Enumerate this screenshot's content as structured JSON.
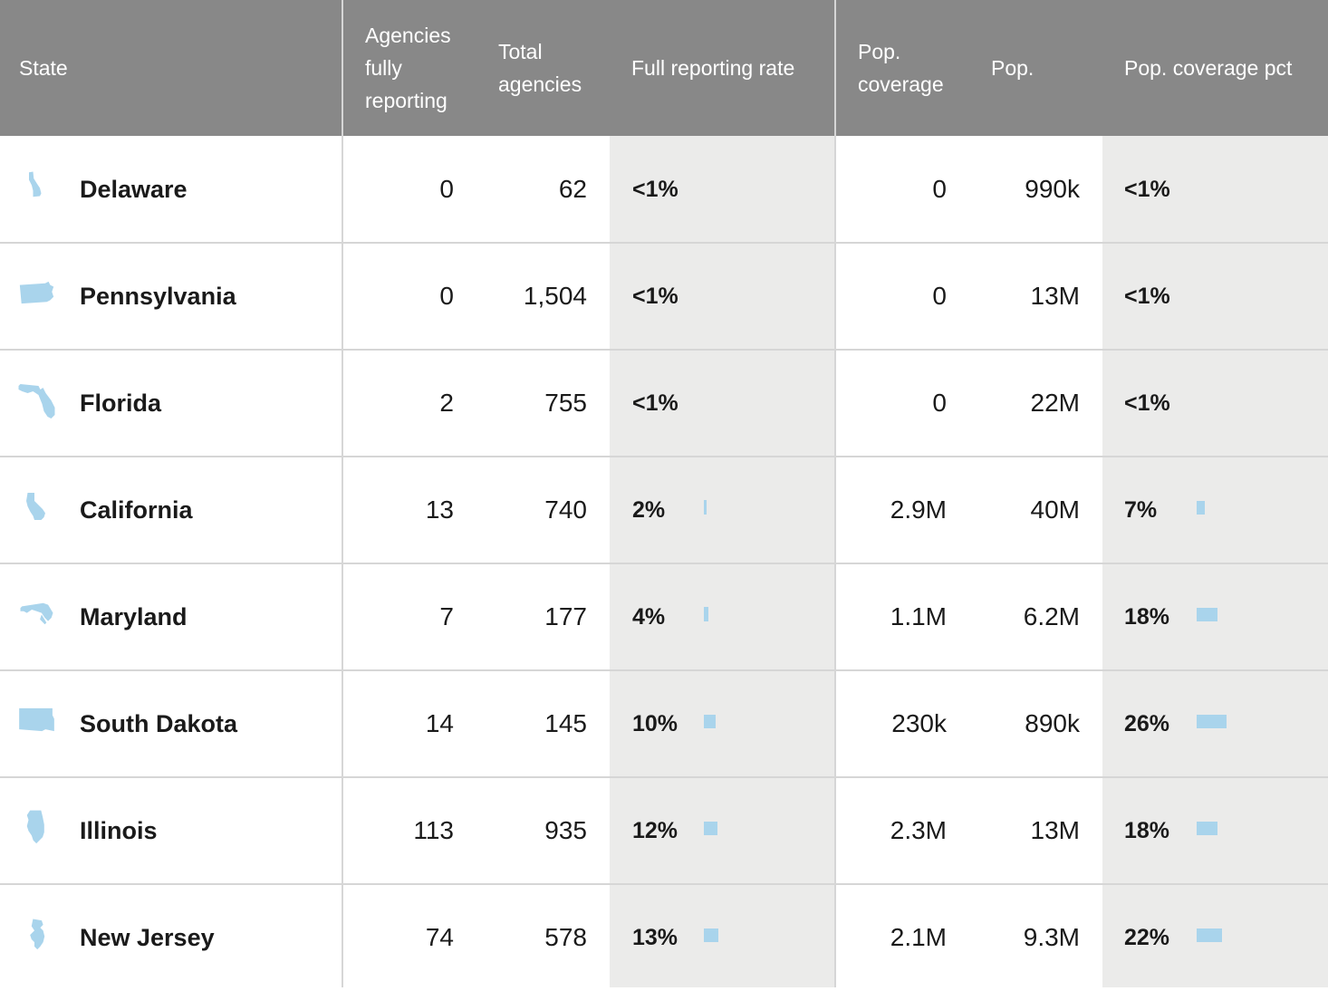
{
  "header": {
    "state": "State",
    "agencies_fully_reporting": "Agencies\nfully\nreporting",
    "total_agencies": "Total\nagencies",
    "full_reporting_rate": "Full reporting rate",
    "pop_coverage": "Pop.\ncoverage",
    "pop": "Pop.",
    "pop_coverage_pct": "Pop. coverage pct"
  },
  "colors": {
    "header_bg": "#888888",
    "shaded_column": "#ebebea",
    "bar": "#a9d4ec",
    "icon": "#a9d4ec"
  },
  "rows": [
    {
      "icon": "delaware-icon",
      "state": "Delaware",
      "agencies_fully_reporting": "0",
      "total_agencies": "62",
      "full_reporting_rate": "<1%",
      "full_reporting_rate_value": 0,
      "pop_coverage": "0",
      "pop": "990k",
      "pop_coverage_pct": "<1%",
      "pop_coverage_pct_value": 0
    },
    {
      "icon": "pennsylvania-icon",
      "state": "Pennsylvania",
      "agencies_fully_reporting": "0",
      "total_agencies": "1,504",
      "full_reporting_rate": "<1%",
      "full_reporting_rate_value": 0,
      "pop_coverage": "0",
      "pop": "13M",
      "pop_coverage_pct": "<1%",
      "pop_coverage_pct_value": 0
    },
    {
      "icon": "florida-icon",
      "state": "Florida",
      "agencies_fully_reporting": "2",
      "total_agencies": "755",
      "full_reporting_rate": "<1%",
      "full_reporting_rate_value": 0,
      "pop_coverage": "0",
      "pop": "22M",
      "pop_coverage_pct": "<1%",
      "pop_coverage_pct_value": 0
    },
    {
      "icon": "california-icon",
      "state": "California",
      "agencies_fully_reporting": "13",
      "total_agencies": "740",
      "full_reporting_rate": "2%",
      "full_reporting_rate_value": 2,
      "pop_coverage": "2.9M",
      "pop": "40M",
      "pop_coverage_pct": "7%",
      "pop_coverage_pct_value": 7
    },
    {
      "icon": "maryland-icon",
      "state": "Maryland",
      "agencies_fully_reporting": "7",
      "total_agencies": "177",
      "full_reporting_rate": "4%",
      "full_reporting_rate_value": 4,
      "pop_coverage": "1.1M",
      "pop": "6.2M",
      "pop_coverage_pct": "18%",
      "pop_coverage_pct_value": 18
    },
    {
      "icon": "south-dakota-icon",
      "state": "South Dakota",
      "agencies_fully_reporting": "14",
      "total_agencies": "145",
      "full_reporting_rate": "10%",
      "full_reporting_rate_value": 10,
      "pop_coverage": "230k",
      "pop": "890k",
      "pop_coverage_pct": "26%",
      "pop_coverage_pct_value": 26
    },
    {
      "icon": "illinois-icon",
      "state": "Illinois",
      "agencies_fully_reporting": "113",
      "total_agencies": "935",
      "full_reporting_rate": "12%",
      "full_reporting_rate_value": 12,
      "pop_coverage": "2.3M",
      "pop": "13M",
      "pop_coverage_pct": "18%",
      "pop_coverage_pct_value": 18
    },
    {
      "icon": "new-jersey-icon",
      "state": "New Jersey",
      "agencies_fully_reporting": "74",
      "total_agencies": "578",
      "full_reporting_rate": "13%",
      "full_reporting_rate_value": 13,
      "pop_coverage": "2.1M",
      "pop": "9.3M",
      "pop_coverage_pct": "22%",
      "pop_coverage_pct_value": 22
    }
  ]
}
